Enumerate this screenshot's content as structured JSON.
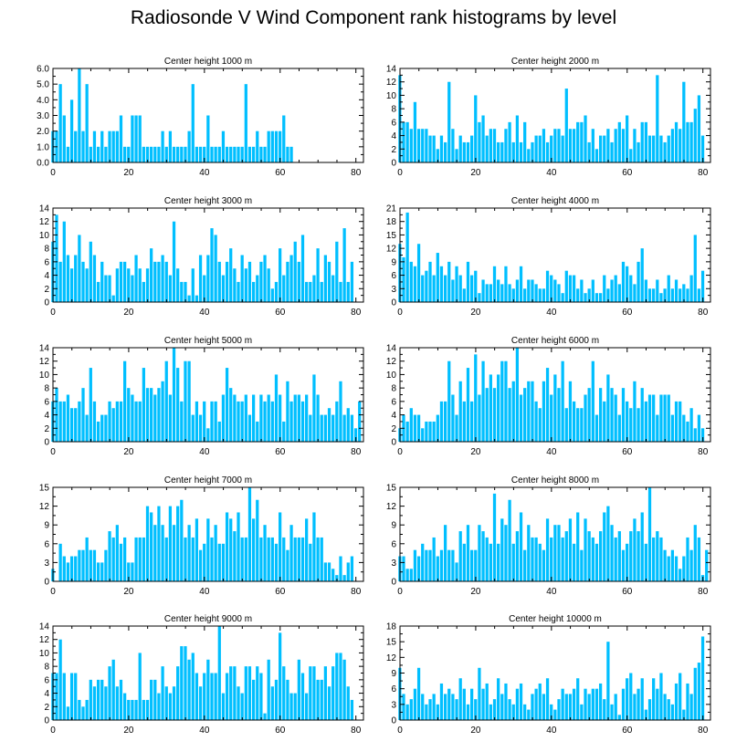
{
  "title": "Radiosonde V Wind Component rank histograms by level",
  "bar_color": "#00bfff",
  "chart_data": [
    {
      "type": "bar",
      "title": "Center height 1000 m",
      "xlim": [
        0,
        82
      ],
      "ylim": [
        0,
        6
      ],
      "xticks": [
        0,
        20,
        40,
        60,
        80
      ],
      "yticks": [
        0,
        1,
        2,
        3,
        4,
        5,
        6
      ],
      "ytick_labels": [
        "0.0",
        "1.0",
        "2.0",
        "3.0",
        "4.0",
        "5.0",
        "6.0"
      ],
      "values": [
        2,
        2,
        5,
        3,
        1,
        4,
        2,
        6,
        2,
        5,
        1,
        2,
        1,
        2,
        1,
        2,
        2,
        2,
        3,
        1,
        1,
        3,
        3,
        3,
        1,
        1,
        1,
        1,
        1,
        2,
        1,
        2,
        1,
        1,
        1,
        1,
        2,
        5,
        1,
        1,
        1,
        3,
        1,
        1,
        1,
        2,
        1,
        1,
        1,
        1,
        1,
        5,
        1,
        1,
        2,
        1,
        1,
        2,
        2,
        2,
        2,
        3,
        1,
        1
      ]
    },
    {
      "type": "bar",
      "title": "Center height 2000 m",
      "xlim": [
        0,
        82
      ],
      "ylim": [
        0,
        14
      ],
      "xticks": [
        0,
        20,
        40,
        60,
        80
      ],
      "yticks": [
        0,
        2,
        4,
        6,
        8,
        10,
        12,
        14
      ],
      "ytick_labels": [
        "0",
        "2",
        "4",
        "6",
        "8",
        "10",
        "12",
        "14"
      ],
      "values": [
        13,
        6,
        6,
        5,
        9,
        5,
        5,
        5,
        4,
        4,
        2,
        4,
        3,
        12,
        5,
        2,
        4,
        3,
        3,
        4,
        10,
        6,
        7,
        4,
        5,
        5,
        3,
        3,
        5,
        6,
        3,
        7,
        3,
        6,
        2,
        3,
        4,
        4,
        5,
        3,
        4,
        5,
        5,
        4,
        11,
        5,
        5,
        6,
        6,
        7,
        3,
        5,
        2,
        4,
        4,
        5,
        3,
        5,
        6,
        5,
        7,
        2,
        5,
        3,
        6,
        6,
        4,
        4,
        13,
        4,
        3,
        4,
        5,
        6,
        5,
        12,
        6,
        6,
        8,
        10,
        4
      ]
    },
    {
      "type": "bar",
      "title": "Center height 3000 m",
      "xlim": [
        0,
        82
      ],
      "ylim": [
        0,
        14
      ],
      "xticks": [
        0,
        20,
        40,
        60,
        80
      ],
      "yticks": [
        0,
        2,
        4,
        6,
        8,
        10,
        12,
        14
      ],
      "ytick_labels": [
        "0",
        "2",
        "4",
        "6",
        "8",
        "10",
        "12",
        "14"
      ],
      "values": [
        9,
        13,
        6,
        12,
        7,
        5,
        7,
        10,
        6,
        5,
        9,
        7,
        3,
        6,
        4,
        4,
        1,
        5,
        6,
        6,
        5,
        4,
        7,
        5,
        3,
        5,
        8,
        6,
        6,
        7,
        6,
        4,
        12,
        5,
        3,
        3,
        1,
        5,
        1,
        7,
        4,
        7,
        11,
        10,
        6,
        4,
        6,
        8,
        5,
        3,
        7,
        5,
        6,
        3,
        4,
        6,
        7,
        5,
        2,
        3,
        8,
        4,
        6,
        7,
        9,
        6,
        10,
        3,
        3,
        4,
        8,
        3,
        7,
        6,
        4,
        9,
        3,
        11,
        3,
        6
      ]
    },
    {
      "type": "bar",
      "title": "Center height 4000 m",
      "xlim": [
        0,
        82
      ],
      "ylim": [
        0,
        21
      ],
      "xticks": [
        0,
        20,
        40,
        60,
        80
      ],
      "yticks": [
        0,
        3,
        6,
        9,
        12,
        15,
        18,
        21
      ],
      "ytick_labels": [
        "0",
        "3",
        "6",
        "9",
        "12",
        "15",
        "18",
        "21"
      ],
      "values": [
        13,
        10,
        20,
        9,
        8,
        13,
        6,
        7,
        9,
        6,
        11,
        8,
        6,
        9,
        5,
        8,
        6,
        3,
        9,
        6,
        7,
        2,
        5,
        4,
        4,
        8,
        5,
        4,
        8,
        4,
        3,
        5,
        8,
        3,
        5,
        5,
        4,
        3,
        3,
        7,
        6,
        5,
        4,
        2,
        7,
        6,
        6,
        3,
        5,
        2,
        3,
        5,
        2,
        2,
        6,
        3,
        5,
        6,
        4,
        9,
        8,
        6,
        4,
        9,
        12,
        5,
        3,
        3,
        5,
        2,
        3,
        6,
        3,
        5,
        3,
        4,
        3,
        6,
        15,
        3,
        7
      ]
    },
    {
      "type": "bar",
      "title": "Center height 5000 m",
      "xlim": [
        0,
        82
      ],
      "ylim": [
        0,
        14
      ],
      "xticks": [
        0,
        20,
        40,
        60,
        80
      ],
      "yticks": [
        0,
        2,
        4,
        6,
        8,
        10,
        12,
        14
      ],
      "ytick_labels": [
        "0",
        "2",
        "4",
        "6",
        "8",
        "10",
        "12",
        "14"
      ],
      "values": [
        6,
        8,
        6,
        6,
        7,
        5,
        5,
        6,
        8,
        4,
        11,
        6,
        3,
        4,
        4,
        6,
        5,
        6,
        6,
        12,
        8,
        7,
        6,
        6,
        11,
        8,
        8,
        7,
        8,
        9,
        12,
        7,
        14,
        11,
        6,
        12,
        12,
        4,
        6,
        4,
        6,
        2,
        6,
        6,
        3,
        7,
        11,
        8,
        7,
        6,
        6,
        7,
        4,
        7,
        3,
        7,
        6,
        7,
        6,
        10,
        7,
        3,
        9,
        6,
        7,
        7,
        6,
        7,
        4,
        10,
        7,
        4,
        4,
        5,
        4,
        6,
        9,
        4,
        5,
        4,
        2,
        6
      ]
    },
    {
      "type": "bar",
      "title": "Center height 6000 m",
      "xlim": [
        0,
        82
      ],
      "ylim": [
        0,
        14
      ],
      "xticks": [
        0,
        20,
        40,
        60,
        80
      ],
      "yticks": [
        0,
        2,
        4,
        6,
        8,
        10,
        12,
        14
      ],
      "ytick_labels": [
        "0",
        "2",
        "4",
        "6",
        "8",
        "10",
        "12",
        "14"
      ],
      "values": [
        2,
        4,
        3,
        5,
        4,
        4,
        2,
        3,
        3,
        3,
        4,
        6,
        6,
        12,
        7,
        4,
        9,
        6,
        11,
        6,
        13,
        7,
        12,
        8,
        10,
        8,
        10,
        12,
        12,
        8,
        9,
        14,
        7,
        8,
        9,
        9,
        6,
        5,
        9,
        11,
        7,
        10,
        8,
        12,
        5,
        9,
        6,
        5,
        5,
        7,
        8,
        12,
        4,
        8,
        6,
        10,
        8,
        7,
        4,
        8,
        6,
        5,
        9,
        5,
        8,
        6,
        7,
        7,
        4,
        7,
        7,
        7,
        4,
        6,
        6,
        4,
        3,
        5,
        2,
        4,
        2
      ]
    },
    {
      "type": "bar",
      "title": "Center height 7000 m",
      "xlim": [
        0,
        82
      ],
      "ylim": [
        0,
        15
      ],
      "xticks": [
        0,
        20,
        40,
        60,
        80
      ],
      "yticks": [
        0,
        3,
        6,
        9,
        12,
        15
      ],
      "ytick_labels": [
        "0",
        "3",
        "6",
        "9",
        "12",
        "15"
      ],
      "values": [
        2,
        0,
        6,
        4,
        3,
        4,
        4,
        5,
        5,
        7,
        5,
        5,
        3,
        3,
        5,
        8,
        7,
        9,
        6,
        7,
        3,
        3,
        7,
        7,
        7,
        12,
        11,
        9,
        12,
        9,
        7,
        12,
        9,
        12,
        13,
        7,
        9,
        7,
        10,
        5,
        6,
        10,
        7,
        9,
        6,
        6,
        11,
        10,
        8,
        11,
        7,
        7,
        15,
        10,
        13,
        7,
        9,
        7,
        7,
        6,
        11,
        7,
        5,
        9,
        7,
        7,
        7,
        10,
        6,
        11,
        7,
        7,
        3,
        3,
        2,
        1,
        4,
        1,
        3,
        4
      ]
    },
    {
      "type": "bar",
      "title": "Center height 8000 m",
      "xlim": [
        0,
        82
      ],
      "ylim": [
        0,
        15
      ],
      "xticks": [
        0,
        20,
        40,
        60,
        80
      ],
      "yticks": [
        0,
        3,
        6,
        9,
        12,
        15
      ],
      "ytick_labels": [
        "0",
        "3",
        "6",
        "9",
        "12",
        "15"
      ],
      "values": [
        4,
        4,
        2,
        2,
        5,
        4,
        6,
        5,
        5,
        7,
        4,
        5,
        9,
        5,
        5,
        3,
        8,
        6,
        9,
        5,
        5,
        9,
        8,
        7,
        6,
        14,
        6,
        10,
        9,
        13,
        6,
        8,
        11,
        5,
        9,
        7,
        7,
        6,
        5,
        10,
        7,
        9,
        9,
        7,
        8,
        10,
        6,
        11,
        5,
        10,
        8,
        7,
        6,
        8,
        11,
        12,
        9,
        7,
        8,
        5,
        6,
        8,
        10,
        8,
        11,
        6,
        15,
        7,
        8,
        7,
        5,
        4,
        5,
        4,
        2,
        4,
        7,
        5,
        9,
        7,
        1,
        5
      ]
    },
    {
      "type": "bar",
      "title": "Center height 9000 m",
      "xlim": [
        0,
        82
      ],
      "ylim": [
        0,
        14
      ],
      "xticks": [
        0,
        20,
        40,
        60,
        80
      ],
      "yticks": [
        0,
        2,
        4,
        6,
        8,
        10,
        12,
        14
      ],
      "ytick_labels": [
        "0",
        "2",
        "4",
        "6",
        "8",
        "10",
        "12",
        "14"
      ],
      "values": [
        7,
        7,
        12,
        7,
        2,
        7,
        7,
        3,
        2,
        3,
        6,
        5,
        6,
        6,
        5,
        8,
        9,
        5,
        6,
        4,
        3,
        3,
        3,
        10,
        3,
        3,
        6,
        6,
        4,
        8,
        5,
        4,
        5,
        8,
        11,
        11,
        9,
        10,
        7,
        5,
        7,
        9,
        7,
        7,
        14,
        4,
        7,
        8,
        8,
        5,
        4,
        8,
        8,
        6,
        8,
        7,
        1,
        9,
        5,
        6,
        13,
        8,
        6,
        4,
        4,
        9,
        7,
        4,
        8,
        8,
        6,
        6,
        8,
        5,
        8,
        10,
        10,
        9,
        5,
        3
      ]
    },
    {
      "type": "bar",
      "title": "Center height 10000 m",
      "xlim": [
        0,
        82
      ],
      "ylim": [
        0,
        18
      ],
      "xticks": [
        0,
        20,
        40,
        60,
        80
      ],
      "yticks": [
        0,
        3,
        6,
        9,
        12,
        15,
        18
      ],
      "ytick_labels": [
        "0",
        "3",
        "6",
        "9",
        "12",
        "15",
        "18"
      ],
      "values": [
        10,
        5,
        3,
        4,
        6,
        10,
        5,
        3,
        4,
        5,
        3,
        7,
        5,
        6,
        5,
        4,
        8,
        6,
        3,
        6,
        4,
        10,
        6,
        7,
        3,
        4,
        8,
        5,
        7,
        4,
        3,
        6,
        7,
        3,
        2,
        5,
        6,
        7,
        5,
        8,
        3,
        2,
        4,
        6,
        5,
        5,
        6,
        8,
        3,
        6,
        5,
        6,
        6,
        7,
        4,
        15,
        3,
        5,
        1,
        6,
        8,
        9,
        5,
        6,
        8,
        2,
        4,
        8,
        6,
        9,
        5,
        4,
        3,
        7,
        9,
        2,
        7,
        5,
        10,
        11,
        16
      ]
    }
  ]
}
